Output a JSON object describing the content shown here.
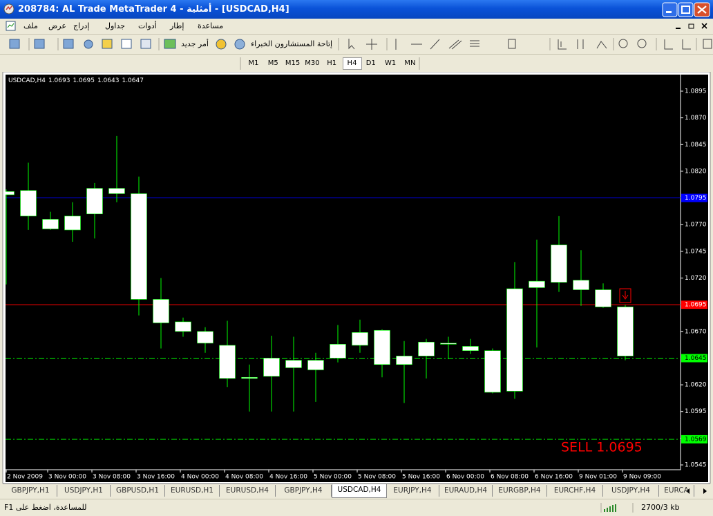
{
  "window": {
    "title": "208784: AL Trade MetaTrader 4 - أمثلية - [USDCAD,H4]"
  },
  "menu": [
    "ملف",
    "عرض",
    "إدراج",
    "جداول",
    "أدوات",
    "إطار",
    "مساعدة"
  ],
  "toolbar": {
    "new_order": "أمر جديد",
    "experts": "إتاحة المستشارون الخبراء"
  },
  "timeframes": {
    "items": [
      "M1",
      "M5",
      "M15",
      "M30",
      "H1",
      "H4",
      "D1",
      "W1",
      "MN"
    ],
    "active": "H4"
  },
  "chart_data": {
    "type": "candlestick",
    "title": "USDCAD,H4",
    "categories": [
      "2 Nov 2009",
      null,
      "3 Nov 00:00",
      null,
      "3 Nov 08:00",
      null,
      "3 Nov 16:00",
      null,
      "4 Nov 00:00",
      null,
      "4 Nov 08:00",
      null,
      "4 Nov 16:00",
      null,
      "5 Nov 00:00",
      null,
      "5 Nov 08:00",
      null,
      "5 Nov 16:00",
      null,
      "6 Nov 00:00",
      null,
      "6 Nov 08:00",
      null,
      "6 Nov 16:00",
      null,
      "9 Nov 01:00",
      null,
      "9 Nov 09:00"
    ],
    "open": [
      1.0798,
      1.0802,
      1.0775,
      1.0765,
      1.078,
      1.0804,
      1.0799,
      1.07,
      1.0679,
      1.067,
      1.0657,
      1.0627,
      1.0628,
      1.0636,
      1.0634,
      1.0645,
      1.0657,
      1.0671,
      1.0639,
      1.0647,
      1.0658,
      1.0656,
      1.0652,
      1.0614,
      1.0711,
      1.0716,
      1.0718,
      1.0709,
      1.0693
    ],
    "high": [
      1.0803,
      1.0828,
      1.0782,
      1.0791,
      1.0809,
      1.0853,
      1.0815,
      1.072,
      1.0683,
      1.0674,
      1.068,
      1.0639,
      1.0666,
      1.0665,
      1.065,
      1.0676,
      1.0681,
      1.0672,
      1.0661,
      1.0663,
      1.0665,
      1.0663,
      1.0654,
      1.0735,
      1.0756,
      1.0778,
      1.0746,
      1.0715,
      1.0695
    ],
    "low": [
      1.0714,
      1.0765,
      1.0765,
      1.0754,
      1.0757,
      1.0791,
      1.0685,
      1.0654,
      1.0665,
      1.065,
      1.0618,
      1.0595,
      1.0595,
      1.0595,
      1.0604,
      1.0641,
      1.065,
      1.0627,
      1.0603,
      1.0626,
      1.0644,
      1.0649,
      1.0612,
      1.0607,
      1.0655,
      1.0707,
      1.0694,
      1.0692,
      1.0643
    ],
    "close": [
      1.0801,
      1.0778,
      1.0766,
      1.0778,
      1.0804,
      1.0799,
      1.07,
      1.0678,
      1.067,
      1.0659,
      1.0626,
      1.0626,
      1.0645,
      1.0643,
      1.0643,
      1.0658,
      1.0669,
      1.0639,
      1.0647,
      1.066,
      1.0659,
      1.0652,
      1.0613,
      1.071,
      1.0717,
      1.0751,
      1.0709,
      1.0693,
      1.0647
    ],
    "ylim": [
      1.05405,
      1.09105
    ],
    "yticks": [
      1.0895,
      {
        "value": 1.087,
        "label": "1.0870"
      },
      1.0845,
      {
        "value": 1.082,
        "label": "1.0820"
      },
      {
        "value": 1.077,
        "label": "1.0770"
      },
      1.0745,
      {
        "value": 1.072,
        "label": "1.0720"
      },
      {
        "value": 1.067,
        "label": "1.0670"
      },
      {
        "value": 1.062,
        "label": "1.0620"
      },
      1.0595,
      {
        "value": 1.057,
        "label": "1.0570"
      },
      1.0545
    ],
    "levels": [
      {
        "value": 1.0795,
        "color": "#0000ff",
        "style": "solid"
      },
      {
        "value": 1.0695,
        "color": "#ff0000",
        "style": "solid"
      },
      {
        "value": 1.0645,
        "color": "#00ff00",
        "style": "dashdot"
      },
      {
        "value": 1.0569,
        "color": "#00ff00",
        "style": "dashdot"
      }
    ],
    "annotation": {
      "text": "SELL 1.0695",
      "color": "#ff0000"
    },
    "body_color": "#ffffff",
    "wick_color": "#00ff00",
    "background": "#000000"
  },
  "tabs": {
    "items": [
      "GBPJPY,H1",
      "USDJPY,H1",
      "GBPUSD,H1",
      "EURUSD,H1",
      "EURUSD,H4",
      "GBPJPY,H4",
      "USDCAD,H4",
      "EURJPY,H4",
      "EURAUD,H4",
      "EURGBP,H4",
      "EURCHF,H4",
      "USDJPY,H4",
      "EURCA"
    ],
    "active": "USDCAD,H4"
  },
  "status": {
    "help": "للمساعدة، اضغط على F1",
    "traffic": "2700/3 kb"
  }
}
